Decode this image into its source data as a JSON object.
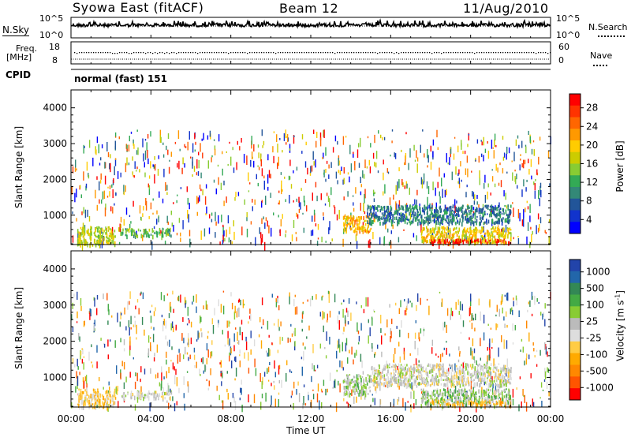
{
  "header": {
    "station": "Syowa East (fitACF)",
    "beam": "Beam 12",
    "date": "11/Aug/2010"
  },
  "strips": {
    "nsky_label": "N.Sky",
    "nsky_ticks": [
      "10^5",
      "10^0"
    ],
    "nsearch_label": "N.Search",
    "freq_label_1": "Freq.",
    "freq_label_2": "[MHz]",
    "freq_ticks": [
      "18",
      "8"
    ],
    "nave_label": "Nave",
    "nave_ticks": [
      "60",
      "0"
    ],
    "cpid_label": "CPID",
    "cpid_value": "normal (fast) 151"
  },
  "axes": {
    "y_label": "Slant Range [km]",
    "y_ticks": [
      "4000",
      "3000",
      "2000",
      "1000"
    ],
    "x_ticks": [
      "00:00",
      "04:00",
      "08:00",
      "12:00",
      "16:00",
      "20:00",
      "00:00"
    ],
    "x_label": "Time UT"
  },
  "colorbars": {
    "power": {
      "label": "Power [dB]",
      "ticks": [
        "28",
        "24",
        "20",
        "16",
        "12",
        "8",
        "4"
      ],
      "colors": [
        "#ff0000",
        "#ff3300",
        "#ff6600",
        "#ff9900",
        "#ffcc00",
        "#cccc00",
        "#88cc33",
        "#33aa55",
        "#338877",
        "#225599",
        "#1133cc",
        "#0000ff"
      ]
    },
    "velocity": {
      "label": "Velocity [m s^-1]",
      "ticks": [
        "1000",
        "500",
        "100",
        "25",
        "-25",
        "-100",
        "-500",
        "-1000"
      ],
      "colors": [
        "#2244aa",
        "#2266aa",
        "#338855",
        "#44aa44",
        "#88cc33",
        "#bbbbbb",
        "#dddddd",
        "#ffcc44",
        "#ffaa00",
        "#ff8800",
        "#ff5500",
        "#ff0000"
      ]
    }
  },
  "chart_data": {
    "type": "heatmap",
    "title": "Syowa East (fitACF)",
    "xlabel": "Time UT",
    "ylabel": "Slant Range [km]",
    "xlim": [
      "00:00",
      "24:00"
    ],
    "ylim": [
      180,
      4500
    ],
    "panels": [
      {
        "name": "Power [dB]",
        "clim": [
          0,
          30
        ],
        "regions": [
          {
            "t": [
              0.3,
              2.2
            ],
            "r": [
              200,
              700
            ],
            "value": 16
          },
          {
            "t": [
              2.5,
              5.0
            ],
            "r": [
              450,
              650
            ],
            "value": 12
          },
          {
            "t": [
              13.6,
              15.0
            ],
            "r": [
              550,
              1000
            ],
            "value": 20
          },
          {
            "t": [
              14.8,
              22.0
            ],
            "r": [
              800,
              1300
            ],
            "value": 8
          },
          {
            "t": [
              17.5,
              22.0
            ],
            "r": [
              250,
              700
            ],
            "value": 18
          },
          {
            "t": [
              18.0,
              22.0
            ],
            "r": [
              250,
              350
            ],
            "value": 28
          }
        ],
        "sparse_max_range": 3400
      },
      {
        "name": "Velocity [m s^-1]",
        "clim": [
          -1000,
          1000
        ],
        "regions": [
          {
            "t": [
              0.3,
              2.2
            ],
            "r": [
              200,
              700
            ],
            "value": -200
          },
          {
            "t": [
              2.5,
              5.0
            ],
            "r": [
              450,
              650
            ],
            "value": 0
          },
          {
            "t": [
              13.6,
              15.0
            ],
            "r": [
              550,
              1100
            ],
            "value": 150
          },
          {
            "t": [
              15.0,
              22.0
            ],
            "r": [
              800,
              1400
            ],
            "value": 0
          },
          {
            "t": [
              17.5,
              22.0
            ],
            "r": [
              250,
              700
            ],
            "value": 200
          },
          {
            "t": [
              18.0,
              22.0
            ],
            "r": [
              250,
              400
            ],
            "value": -300
          }
        ],
        "sparse_max_range": 3400
      }
    ]
  }
}
